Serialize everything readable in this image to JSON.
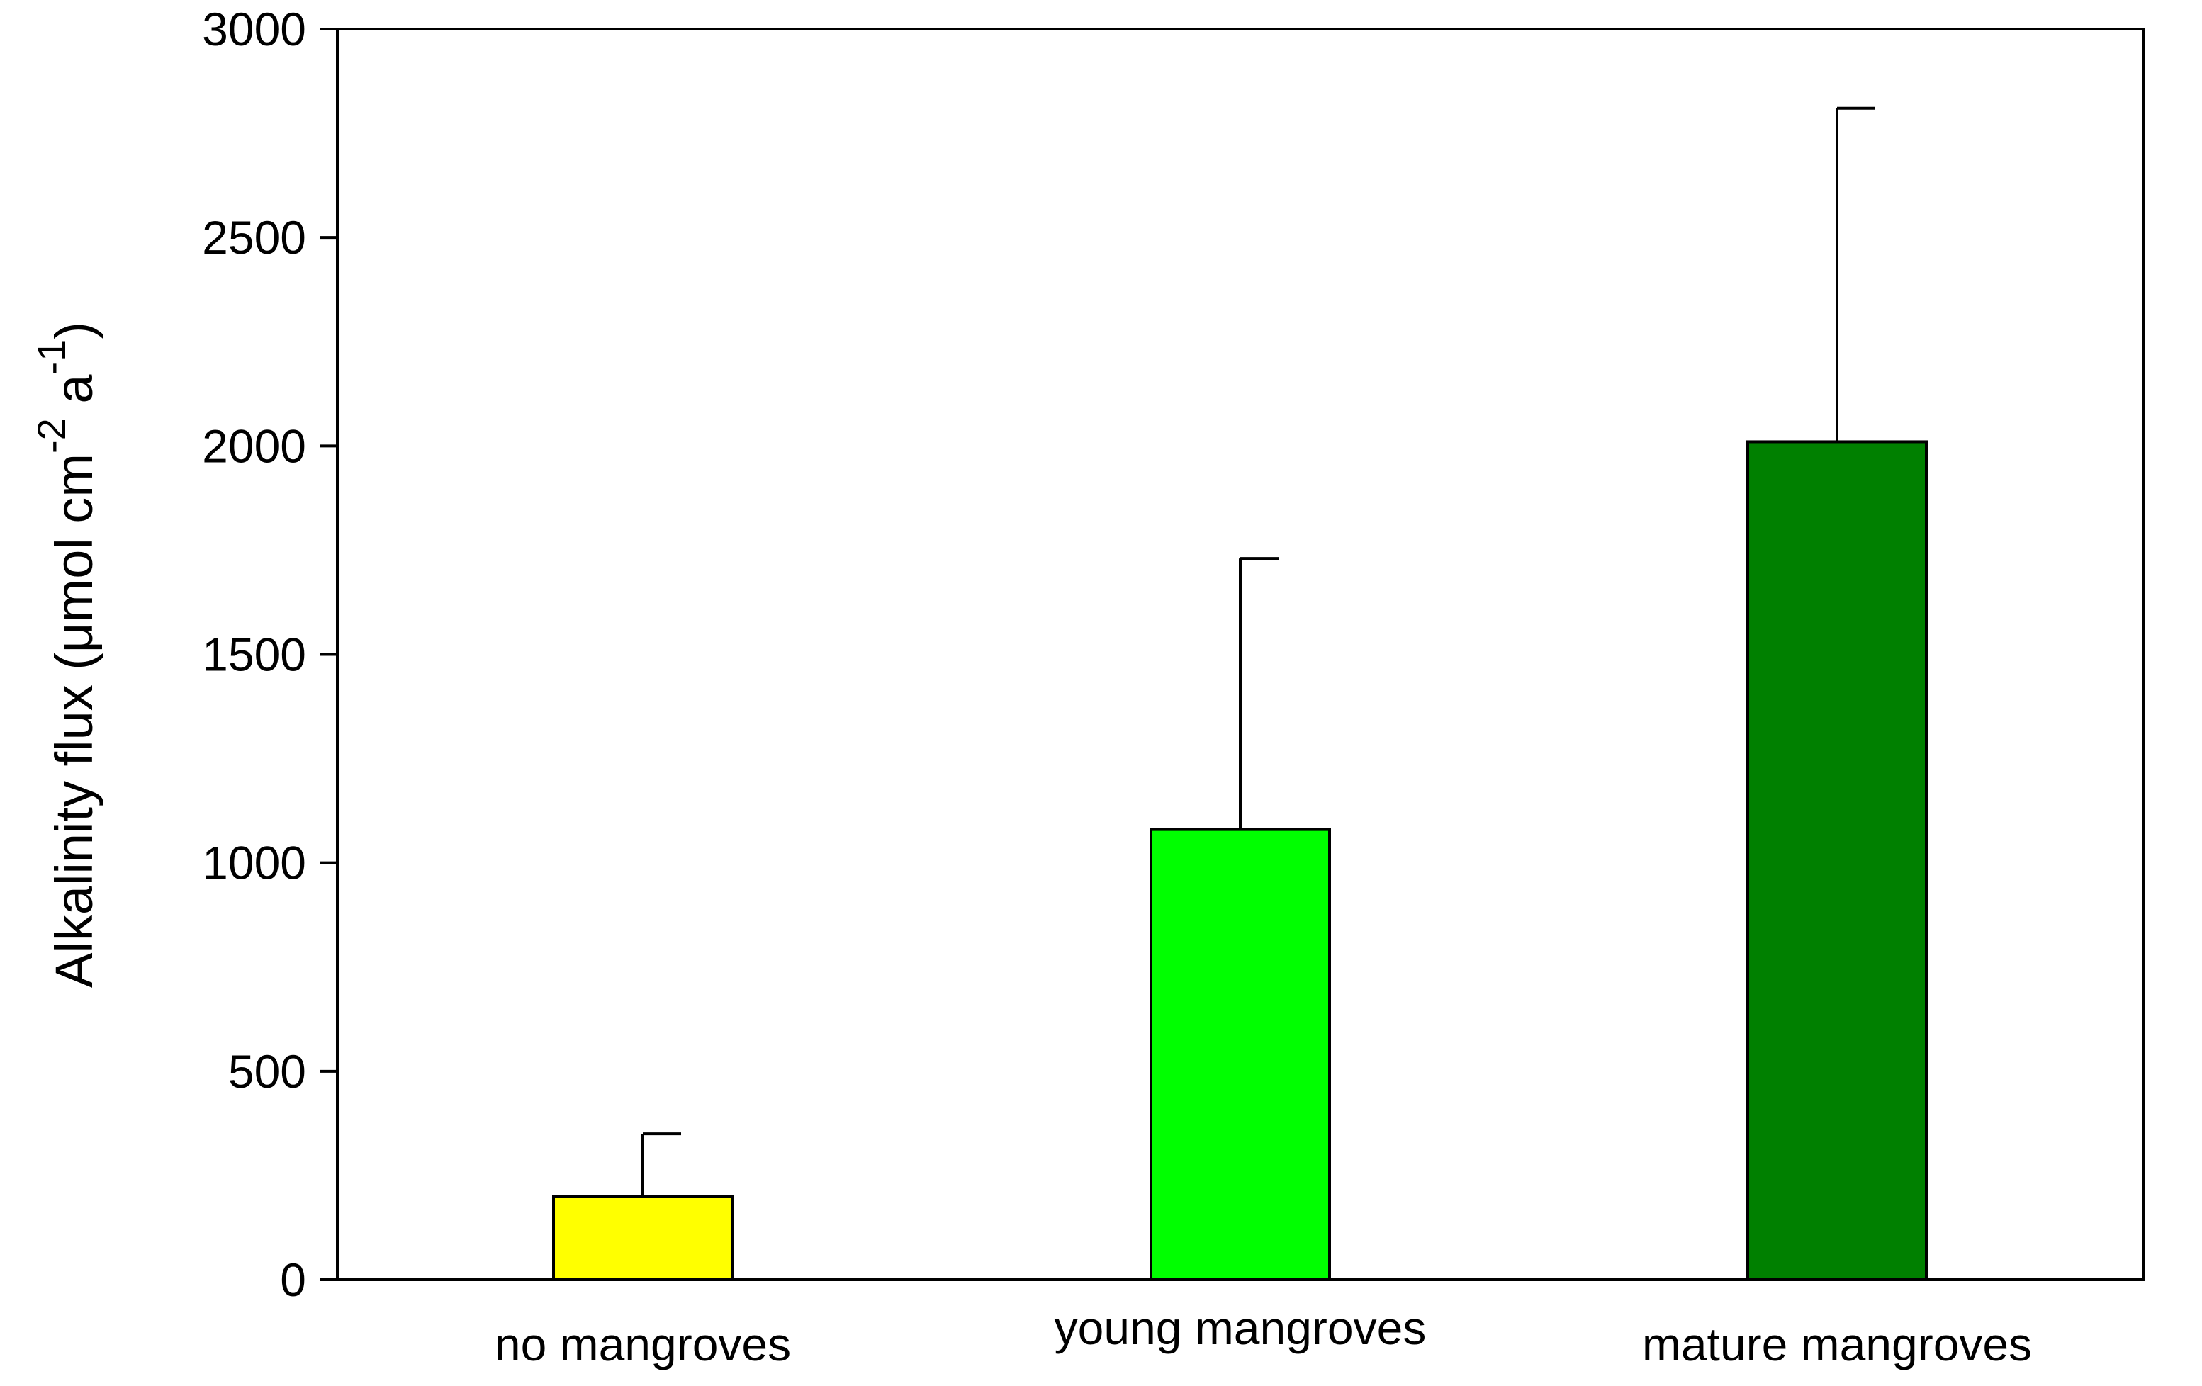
{
  "chart_data": {
    "type": "bar",
    "title": "",
    "xlabel": "",
    "ylabel": {
      "parts": [
        {
          "text": "Alkalinity flux (",
          "shift": "none"
        },
        {
          "text": "μ",
          "shift": "none"
        },
        {
          "text": "mol cm",
          "shift": "none"
        },
        {
          "text": "-2",
          "shift": "super"
        },
        {
          "text": " a",
          "shift": "none"
        },
        {
          "text": "-1",
          "shift": "super"
        },
        {
          "text": ")",
          "shift": "none"
        }
      ]
    },
    "categories": [
      "no mangroves",
      "young mangroves",
      "mature mangroves"
    ],
    "values": [
      200,
      1080,
      2010
    ],
    "error_upper": [
      350,
      1730,
      2810
    ],
    "bar_colors": [
      "#ffff00",
      "#00ff00",
      "#008000"
    ],
    "ylim": [
      0,
      3000
    ],
    "yticks": [
      0,
      500,
      1000,
      1500,
      2000,
      2500,
      3000
    ],
    "grid": false,
    "legend": "none"
  }
}
